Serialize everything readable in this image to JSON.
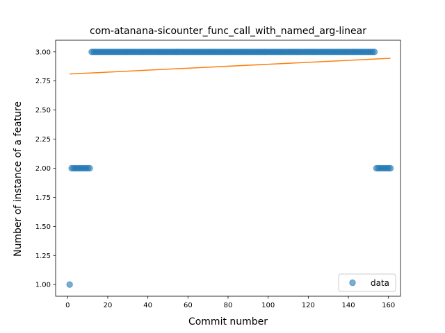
{
  "chart_data": {
    "type": "scatter",
    "title": "com-atanana-sicounter_func_call_with_named_arg-linear",
    "xlabel": "Commit number",
    "ylabel": "Number of instance of a feature",
    "xlim": [
      -6,
      166
    ],
    "ylim": [
      0.9,
      3.1
    ],
    "xticks": [
      0,
      20,
      40,
      60,
      80,
      100,
      120,
      140,
      160
    ],
    "yticks": [
      1.0,
      1.25,
      1.5,
      1.75,
      2.0,
      2.25,
      2.5,
      2.75,
      3.0
    ],
    "ytick_labels": [
      "1.00",
      "1.25",
      "1.50",
      "1.75",
      "2.00",
      "2.25",
      "2.50",
      "2.75",
      "3.00"
    ],
    "legend": {
      "position": "lower-right",
      "entries": [
        "data"
      ]
    },
    "series": [
      {
        "name": "data",
        "kind": "scatter",
        "color": "#1f77b4",
        "segments": [
          {
            "x_start": 1,
            "x_end": 1,
            "y": 1
          },
          {
            "x_start": 2,
            "x_end": 11,
            "y": 2
          },
          {
            "x_start": 12,
            "x_end": 153,
            "y": 3
          },
          {
            "x_start": 154,
            "x_end": 161,
            "y": 2
          }
        ]
      },
      {
        "kind": "line",
        "color": "#ff7f0e",
        "x": [
          1,
          161
        ],
        "y": [
          2.81,
          2.945
        ]
      }
    ]
  }
}
